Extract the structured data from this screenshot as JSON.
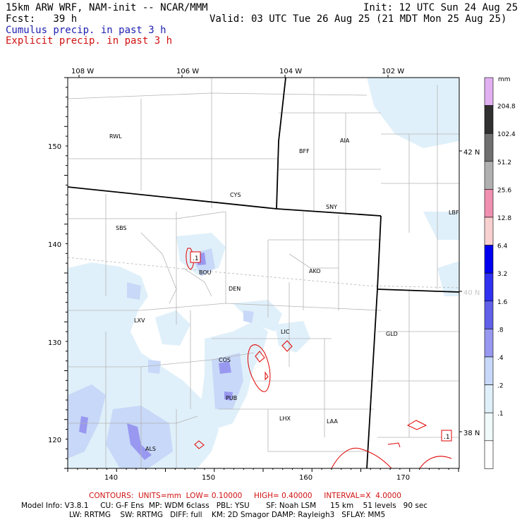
{
  "header": {
    "model": "15km ARW WRF, NAM-init -- NCAR/MMM",
    "init": "Init: 12 UTC Sun 24 Aug 25",
    "fcst": "Fcst:   39 h",
    "valid": "Valid: 03 UTC Tue 26 Aug 25 (21 MDT Mon 25 Aug 25)",
    "cumulus": "Cumulus precip. in past 3 h",
    "explicit": "Explicit precip. in past 3 h"
  },
  "colors": {
    "cumulus_label": "#2020b0",
    "explicit_label": "#d01010",
    "contour": "#e00000",
    "border": "#a0a0a0"
  },
  "axes": {
    "top_lon": [
      "108 W",
      "106 W",
      "104 W",
      "102 W"
    ],
    "right_lat": [
      "42 N",
      "40 N",
      "38 N"
    ],
    "left_grid": [
      "150",
      "140",
      "130",
      "120"
    ],
    "bottom_grid": [
      "140",
      "150",
      "160",
      "170"
    ]
  },
  "stations": [
    "RWL",
    "CYS",
    "BFF",
    "AIA",
    "SNY",
    "LBF",
    "SBS",
    "BOU",
    "DEN",
    "AKO",
    "LXV",
    "LIC",
    "GLD",
    "COS",
    "PUB",
    "LHX",
    "LAA",
    "ALS"
  ],
  "contour_labels": [
    ".1",
    ".1"
  ],
  "colorbar": {
    "unit": "mm",
    "labels": [
      "204.8",
      "102.4",
      "51.2",
      "25.6",
      "12.8",
      "6.4",
      "3.2",
      "1.6",
      ".8",
      ".4",
      ".2",
      ".1"
    ],
    "colors": [
      "#e0b0f0",
      "#303030",
      "#707070",
      "#b0b0b0",
      "#f090b0",
      "#f8d0d0",
      "#0000f0",
      "#3030f0",
      "#6060e8",
      "#9898f0",
      "#c8d8f8",
      "#e0f0fa",
      "#f0fafa",
      "#ffffff"
    ]
  },
  "footer": {
    "contours": "CONTOURS:  UNITS=mm  LOW= 0.10000     HIGH= 0.40000     INTERVAL=X  4.0000",
    "info1": "Model Info: V3.8.1     CU: G-F Ens  MP: WDM 6class   PBL: YSU       SF: Noah LSM      15 km    51 levels   90 sec",
    "info2": "LW: RRTMG    SW: RRTMG   DIFF: full    KM: 2D Smagor DAMP: Rayleigh3   SFLAY: MM5"
  }
}
